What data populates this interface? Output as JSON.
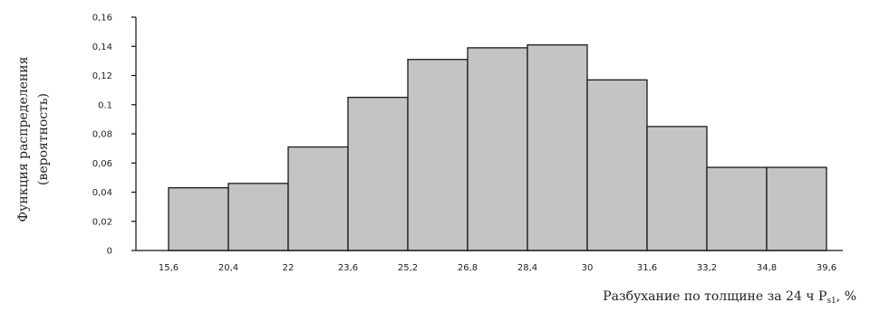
{
  "chart_data": {
    "type": "bar",
    "ylabel_line1": "Функция распределения",
    "ylabel_line2": "(вероятность)",
    "xlabel_main": "Разбухание по толщине за 24 ч P",
    "xlabel_subscript": "s1",
    "xlabel_unit": ", %",
    "ylim": [
      0,
      0.16
    ],
    "yticks": [
      "0",
      "0,02",
      "0,04",
      "0,06",
      "0,08",
      "0.1",
      "0,12",
      "0,14",
      "0,16"
    ],
    "xtick_labels": [
      "15,6",
      "20,4",
      "22",
      "23,6",
      "25,2",
      "26,8",
      "28,4",
      "30",
      "31,6",
      "33,2",
      "34,8",
      "39,6"
    ],
    "values": [
      0.043,
      0.046,
      0.071,
      0.105,
      0.131,
      0.139,
      0.141,
      0.117,
      0.085,
      0.057,
      0.057
    ],
    "grid": false
  }
}
